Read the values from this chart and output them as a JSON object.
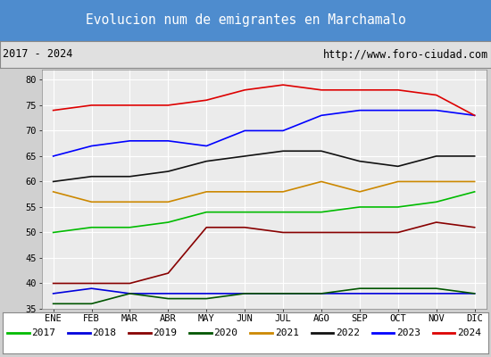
{
  "title": "Evolucion num de emigrantes en Marchamalo",
  "subtitle_left": "2017 - 2024",
  "subtitle_right": "http://www.foro-ciudad.com",
  "x_labels": [
    "ENE",
    "FEB",
    "MAR",
    "ABR",
    "MAY",
    "JUN",
    "JUL",
    "AGO",
    "SEP",
    "OCT",
    "NOV",
    "DIC"
  ],
  "ylim": [
    35,
    82
  ],
  "yticks": [
    35,
    40,
    45,
    50,
    55,
    60,
    65,
    70,
    75,
    80
  ],
  "series": {
    "2017": {
      "color": "#00bb00",
      "data": [
        50,
        51,
        51,
        52,
        54,
        54,
        54,
        54,
        55,
        55,
        56,
        58
      ]
    },
    "2018": {
      "color": "#0000dd",
      "data": [
        38,
        39,
        38,
        38,
        38,
        38,
        38,
        38,
        38,
        38,
        38,
        38
      ]
    },
    "2019": {
      "color": "#880000",
      "data": [
        40,
        40,
        40,
        42,
        51,
        51,
        50,
        50,
        50,
        50,
        52,
        51
      ]
    },
    "2020": {
      "color": "#005500",
      "data": [
        36,
        36,
        38,
        37,
        37,
        38,
        38,
        38,
        39,
        39,
        39,
        38
      ]
    },
    "2021": {
      "color": "#cc8800",
      "data": [
        58,
        56,
        56,
        56,
        58,
        58,
        58,
        60,
        58,
        60,
        60,
        60
      ]
    },
    "2022": {
      "color": "#111111",
      "data": [
        60,
        61,
        61,
        62,
        64,
        65,
        66,
        66,
        64,
        63,
        65,
        65
      ]
    },
    "2023": {
      "color": "#0000ff",
      "data": [
        65,
        67,
        68,
        68,
        67,
        70,
        70,
        73,
        74,
        74,
        74,
        73
      ]
    },
    "2024": {
      "color": "#dd0000",
      "data": [
        74,
        75,
        75,
        75,
        76,
        78,
        79,
        78,
        78,
        78,
        77,
        73
      ]
    }
  },
  "title_bg": "#4e8cce",
  "title_color": "white",
  "plot_bg": "#ebebeb",
  "grid_color": "white",
  "fig_width": 5.5,
  "fig_height": 4.0,
  "dpi": 100
}
